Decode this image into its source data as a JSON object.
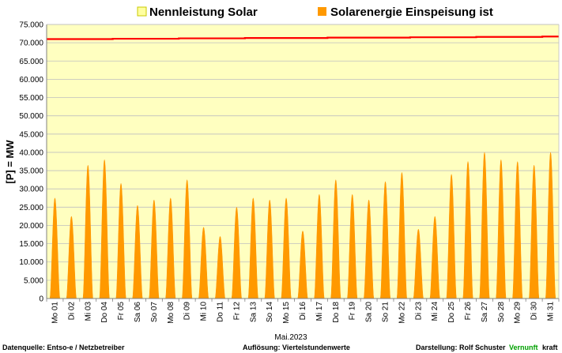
{
  "chart_data": {
    "type": "area",
    "title": "",
    "xlabel": "Mai.2023",
    "ylabel": "[P] = MW",
    "ylim": [
      0,
      75000
    ],
    "yticks": [
      "0",
      "5.000",
      "10.000",
      "15.000",
      "20.000",
      "25.000",
      "30.000",
      "35.000",
      "40.000",
      "45.000",
      "50.000",
      "55.000",
      "60.000",
      "65.000",
      "70.000",
      "75.000"
    ],
    "ytick_values": [
      0,
      5000,
      10000,
      15000,
      20000,
      25000,
      30000,
      35000,
      40000,
      45000,
      50000,
      55000,
      60000,
      65000,
      70000,
      75000
    ],
    "categories": [
      "Mo 01",
      "Di 02",
      "Mi 03",
      "Do 04",
      "Fr 05",
      "Sa 06",
      "So 07",
      "Mo 08",
      "Di 09",
      "Mi 10",
      "Do 11",
      "Fr 12",
      "Sa 13",
      "So 14",
      "Mo 15",
      "Di 16",
      "Mi 17",
      "Do 18",
      "Fr 19",
      "Sa 20",
      "So 21",
      "Mo 22",
      "Di 23",
      "Mi 24",
      "Do 25",
      "Fr 26",
      "Sa 27",
      "So 28",
      "Mo 29",
      "Di 30",
      "Mi 31"
    ],
    "grid": true,
    "legend_position": "top",
    "series": [
      {
        "name": "Nennleistung Solar",
        "kind": "line",
        "color": "#ff0000",
        "fill_color": "#ffffc0",
        "legend_swatch": "#ffffa0",
        "values": [
          71000,
          71000,
          71000,
          71000,
          71100,
          71100,
          71100,
          71100,
          71200,
          71200,
          71200,
          71200,
          71300,
          71300,
          71300,
          71300,
          71300,
          71400,
          71400,
          71400,
          71400,
          71400,
          71500,
          71500,
          71500,
          71500,
          71600,
          71600,
          71600,
          71600,
          71700
        ]
      },
      {
        "name": "Solarenergie Einspeisung ist",
        "kind": "area",
        "color": "#ff9900",
        "values": [
          27500,
          22500,
          36500,
          38000,
          31500,
          25500,
          27000,
          27500,
          32500,
          19500,
          17000,
          25000,
          27500,
          27000,
          27500,
          18500,
          28500,
          32500,
          28500,
          27000,
          32000,
          34500,
          19000,
          22500,
          34000,
          37500,
          40000,
          38000,
          37500,
          36500,
          40000
        ]
      }
    ]
  },
  "footer": {
    "source": "Datenquelle:  Entso-e  / Netzbetreiber",
    "resolution": "Auflösung: Viertelstundenwerte",
    "author": "Darstellung:  Rolf Schuster",
    "brand_green": "Vernunft",
    "brand_black": "kraft"
  },
  "colors": {
    "plot_background": "#ffffc0",
    "grid": "#bfbfbf",
    "capacity_line": "#ff0000",
    "solar_area": "#ff9900",
    "brand_green": "#00a000"
  }
}
